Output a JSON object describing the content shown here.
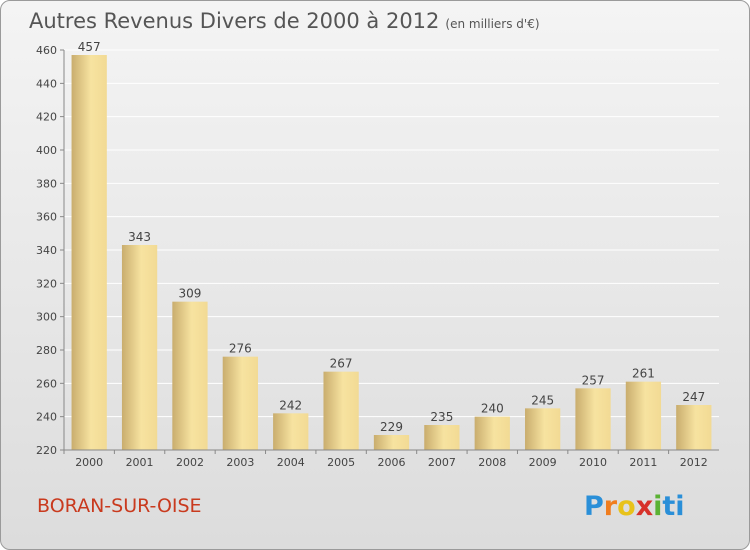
{
  "title": "Autres Revenus Divers de 2000 à 2012",
  "title_unit": "(en milliers d'€)",
  "place": "BORAN-SUR-OISE",
  "logo_letters": [
    "P",
    "r",
    "o",
    "x",
    "i",
    "ti"
  ],
  "colors": {
    "bar_light": "#f7e3a0",
    "bar_dark": "#c9ad6e",
    "grid": "#ffffff",
    "text": "#555555",
    "place": "#c93a1e"
  },
  "chart_data": {
    "type": "bar",
    "title": "Autres Revenus Divers de 2000 à 2012",
    "xlabel": "",
    "ylabel": "",
    "categories": [
      "2000",
      "2001",
      "2002",
      "2003",
      "2004",
      "2005",
      "2006",
      "2007",
      "2008",
      "2009",
      "2010",
      "2011",
      "2012"
    ],
    "values": [
      457,
      343,
      309,
      276,
      242,
      267,
      229,
      235,
      240,
      245,
      257,
      261,
      247
    ],
    "ylim": [
      220,
      460
    ],
    "yticks": [
      220,
      240,
      260,
      280,
      300,
      320,
      340,
      360,
      380,
      400,
      420,
      440,
      460
    ],
    "grid": true,
    "legend": "none"
  }
}
